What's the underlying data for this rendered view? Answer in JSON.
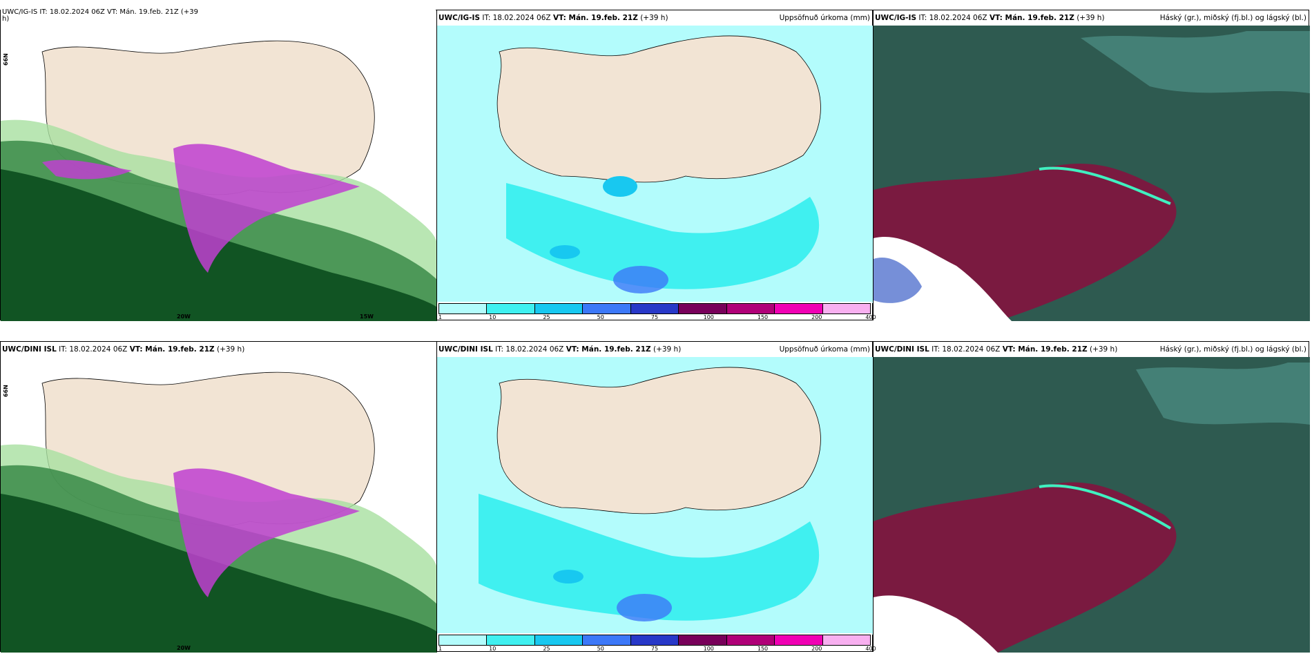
{
  "panels": {
    "top_left": {
      "model": "UWC/IG-IS",
      "issue": "IT: 18.02.2024 06Z",
      "valid": "VT: Mán. 19.feb. 21Z",
      "lead": "(+39 h)",
      "label": ""
    },
    "top_mid": {
      "model": "UWC/IG-IS",
      "issue": "IT: 18.02.2024 06Z",
      "valid": "VT: Mán. 19.feb. 21Z",
      "lead": "(+39 h)",
      "label": "Uppsöfnuð úrkoma (mm)"
    },
    "top_right": {
      "model": "UWC/IG-IS",
      "issue": "IT: 18.02.2024 06Z",
      "valid": "VT: Mán. 19.feb. 21Z",
      "lead": "(+39 h)",
      "label": "Háský (gr.), miðský (fj.bl.) og lágský (bl.)"
    },
    "bot_left": {
      "model": "UWC/DINI ISL",
      "issue": "IT: 18.02.2024 06Z",
      "valid": "VT: Mán. 19.feb. 21Z",
      "lead": "(+39 h)",
      "label": ""
    },
    "bot_mid": {
      "model": "UWC/DINI ISL",
      "issue": "IT: 18.02.2024 06Z",
      "valid": "VT: Mán. 19.feb. 21Z",
      "lead": "(+39 h)",
      "label": "Uppsöfnuð úrkoma (mm)"
    },
    "bot_right": {
      "model": "UWC/DINI ISL",
      "issue": "IT: 18.02.2024 06Z",
      "valid": "VT: Mán. 19.feb. 21Z",
      "lead": "(+39 h)",
      "label": "Háský (gr.), miðský (fj.bl.) og lágský (bl.)"
    }
  },
  "top_left_truncated_title": "UWC/IG-IS IT: 18.02.2024 06Z VT: Mán. 19.feb. 21Z (+39",
  "top_left_truncated_title_2": "h)",
  "colorbar": {
    "ticks": [
      "1",
      "10",
      "25",
      "50",
      "75",
      "100",
      "150",
      "200",
      "400"
    ],
    "colors": [
      "#b3fcfc",
      "#40f0f0",
      "#18c8f0",
      "#3c78f8",
      "#2838c8",
      "#78005a",
      "#b00078",
      "#f000b4",
      "#f8b0f0"
    ]
  },
  "grid_labels": {
    "lat": "66N",
    "lon1": "20W",
    "lon2": "15W"
  },
  "colors": {
    "land": "#f2e4d4",
    "sea_precip_light": "#b3fcfc",
    "precip_mid": "#40f0f0",
    "cloud_high": "#2e5a50",
    "cloud_mid": "#7a1a40",
    "cloud_low": "#ffffff",
    "wind_green_dark": "#0b4d1e",
    "wind_green_light": "#a8e0a0",
    "purple": "#c040d0"
  }
}
